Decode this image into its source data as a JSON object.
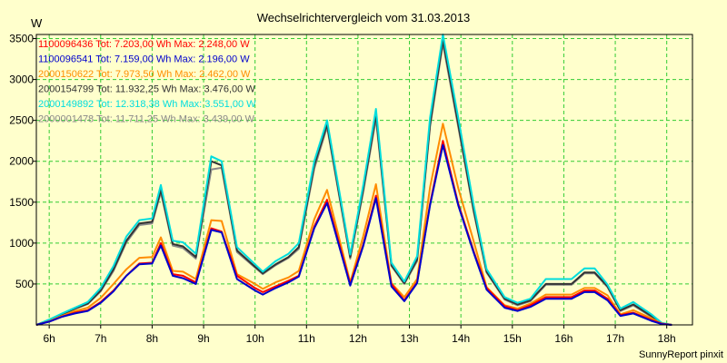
{
  "chart_data": {
    "type": "line",
    "title": "Wechselrichtervergleich vom 31.03.2013",
    "ylabel": "W",
    "xlabel": "",
    "footer": "SunnyReport pinxit",
    "ylim": [
      0,
      3550
    ],
    "xlim": [
      5.75,
      18.5
    ],
    "yticks": [
      500,
      1000,
      1500,
      2000,
      2500,
      3000,
      3500
    ],
    "xticks": [
      {
        "value": 6,
        "label": "6h"
      },
      {
        "value": 7,
        "label": "7h"
      },
      {
        "value": 8,
        "label": "8h"
      },
      {
        "value": 9,
        "label": "9h"
      },
      {
        "value": 10,
        "label": "10h"
      },
      {
        "value": 11,
        "label": "11h"
      },
      {
        "value": 12,
        "label": "12h"
      },
      {
        "value": 13,
        "label": "13h"
      },
      {
        "value": 14,
        "label": "14h"
      },
      {
        "value": 15,
        "label": "15h"
      },
      {
        "value": 16,
        "label": "16h"
      },
      {
        "value": 17,
        "label": "17h"
      },
      {
        "value": 18,
        "label": "18h"
      }
    ],
    "grid": true,
    "legend_position": "top-left",
    "x": [
      5.75,
      6.0,
      6.25,
      6.5,
      6.75,
      7.0,
      7.25,
      7.5,
      7.75,
      8.0,
      8.17,
      8.4,
      8.6,
      8.85,
      9.15,
      9.35,
      9.65,
      10.0,
      10.15,
      10.4,
      10.65,
      10.85,
      11.15,
      11.4,
      11.85,
      12.1,
      12.35,
      12.65,
      12.9,
      13.15,
      13.4,
      13.65,
      13.95,
      14.25,
      14.5,
      14.85,
      15.1,
      15.35,
      15.65,
      15.9,
      16.15,
      16.4,
      16.6,
      16.85,
      17.1,
      17.35,
      17.7,
      17.9,
      18.1
    ],
    "series": [
      {
        "name": "1100096436 Tot: 7.203,00 Wh Max: 2.248,00 W",
        "color": "#ff0000",
        "values": [
          0,
          40,
          100,
          150,
          180,
          280,
          420,
          600,
          750,
          760,
          1000,
          620,
          600,
          520,
          1180,
          1140,
          600,
          450,
          400,
          470,
          540,
          600,
          1200,
          1530,
          500,
          980,
          1580,
          500,
          300,
          520,
          1480,
          2250,
          1480,
          900,
          450,
          230,
          180,
          240,
          340,
          340,
          340,
          420,
          420,
          320,
          120,
          150,
          60,
          15,
          0
        ]
      },
      {
        "name": "1100096541 Tot: 7.159,00 Wh Max: 2.196,00 W",
        "color": "#0000cc",
        "values": [
          0,
          40,
          100,
          140,
          170,
          270,
          410,
          600,
          740,
          750,
          970,
          600,
          570,
          500,
          1160,
          1130,
          560,
          420,
          370,
          450,
          520,
          590,
          1180,
          1490,
          480,
          960,
          1550,
          470,
          290,
          510,
          1460,
          2200,
          1460,
          880,
          430,
          210,
          170,
          220,
          320,
          320,
          320,
          400,
          400,
          300,
          110,
          140,
          50,
          10,
          0
        ]
      },
      {
        "name": "2000150622 Tot: 7.973,50 Wh Max: 2.462,00 W",
        "color": "#ff8c00",
        "values": [
          0,
          45,
          110,
          170,
          210,
          330,
          500,
          680,
          820,
          830,
          1070,
          660,
          650,
          560,
          1280,
          1270,
          620,
          500,
          440,
          520,
          580,
          660,
          1290,
          1650,
          520,
          1080,
          1720,
          510,
          340,
          560,
          1680,
          2460,
          1670,
          1020,
          460,
          240,
          200,
          260,
          370,
          370,
          370,
          450,
          450,
          360,
          130,
          180,
          80,
          15,
          0
        ]
      },
      {
        "name": "2000154799 Tot: 11.932,25 Wh Max: 3.476,00 W",
        "color": "#333333",
        "values": [
          0,
          60,
          130,
          200,
          260,
          420,
          680,
          1030,
          1240,
          1260,
          1650,
          990,
          960,
          830,
          2000,
          1950,
          910,
          710,
          630,
          740,
          830,
          950,
          1950,
          2450,
          830,
          1650,
          2570,
          730,
          510,
          800,
          2450,
          3480,
          2450,
          1400,
          650,
          320,
          250,
          300,
          500,
          500,
          500,
          640,
          640,
          470,
          180,
          250,
          110,
          20,
          0
        ]
      },
      {
        "name": "2000149892 Tot: 12.318,38 Wh Max: 3.551,00 W",
        "color": "#00dddd",
        "values": [
          0,
          65,
          140,
          210,
          280,
          450,
          720,
          1080,
          1280,
          1300,
          1710,
          1030,
          1010,
          870,
          2060,
          2000,
          950,
          740,
          650,
          780,
          870,
          1000,
          2000,
          2500,
          860,
          1700,
          2640,
          760,
          530,
          840,
          2530,
          3550,
          2530,
          1460,
          680,
          340,
          270,
          320,
          560,
          560,
          560,
          690,
          690,
          490,
          200,
          280,
          130,
          25,
          0
        ]
      },
      {
        "name": "2000001478 Tot: 11.711,25 Wh Max: 3.439,00 W",
        "color": "#888888",
        "values": [
          0,
          58,
          125,
          195,
          255,
          410,
          660,
          1010,
          1220,
          1240,
          1620,
          970,
          940,
          810,
          1900,
          1920,
          890,
          700,
          620,
          730,
          820,
          930,
          1910,
          2420,
          810,
          1620,
          2520,
          720,
          500,
          780,
          2420,
          3440,
          2420,
          1380,
          640,
          310,
          240,
          290,
          490,
          490,
          490,
          630,
          630,
          460,
          170,
          240,
          100,
          20,
          0
        ]
      }
    ]
  }
}
